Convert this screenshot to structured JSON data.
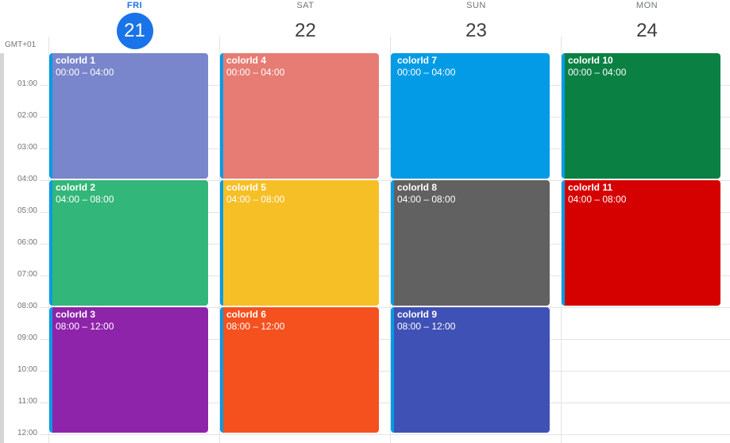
{
  "calendar": {
    "timezone": "GMT+01",
    "hours": [
      "01:00",
      "02:00",
      "03:00",
      "04:00",
      "05:00",
      "06:00",
      "07:00",
      "08:00",
      "09:00",
      "10:00",
      "11:00",
      "12:00"
    ],
    "days": [
      {
        "name": "FRI",
        "number": "21",
        "today": true
      },
      {
        "name": "SAT",
        "number": "22",
        "today": false
      },
      {
        "name": "SUN",
        "number": "23",
        "today": false
      },
      {
        "name": "MON",
        "number": "24",
        "today": false
      }
    ],
    "events": [
      {
        "title": "colorId 1",
        "time": "00:00 – 04:00",
        "day": 0,
        "start": 0,
        "end": 4,
        "color": "#7986cb"
      },
      {
        "title": "colorId 2",
        "time": "04:00 – 08:00",
        "day": 0,
        "start": 4,
        "end": 8,
        "color": "#33b679"
      },
      {
        "title": "colorId 3",
        "time": "08:00 – 12:00",
        "day": 0,
        "start": 8,
        "end": 12,
        "color": "#8e24aa"
      },
      {
        "title": "colorId 4",
        "time": "00:00 – 04:00",
        "day": 1,
        "start": 0,
        "end": 4,
        "color": "#e67c73"
      },
      {
        "title": "colorId 5",
        "time": "04:00 – 08:00",
        "day": 1,
        "start": 4,
        "end": 8,
        "color": "#f6bf26"
      },
      {
        "title": "colorId 6",
        "time": "08:00 – 12:00",
        "day": 1,
        "start": 8,
        "end": 12,
        "color": "#f4511e"
      },
      {
        "title": "colorId 7",
        "time": "00:00 – 04:00",
        "day": 2,
        "start": 0,
        "end": 4,
        "color": "#039be5"
      },
      {
        "title": "colorId 8",
        "time": "04:00 – 08:00",
        "day": 2,
        "start": 4,
        "end": 8,
        "color": "#616161"
      },
      {
        "title": "colorId 9",
        "time": "08:00 – 12:00",
        "day": 2,
        "start": 8,
        "end": 12,
        "color": "#3f51b5"
      },
      {
        "title": "colorId 10",
        "time": "00:00 – 04:00",
        "day": 3,
        "start": 0,
        "end": 4,
        "color": "#0b8043"
      },
      {
        "title": "colorId 11",
        "time": "04:00 – 08:00",
        "day": 3,
        "start": 4,
        "end": 8,
        "color": "#d50000"
      }
    ]
  },
  "colors": {
    "today_accent": "#1a73e8",
    "event_left_border": "#039be5",
    "grid_line": "#e3e3e3",
    "muted_text": "#70757a"
  }
}
